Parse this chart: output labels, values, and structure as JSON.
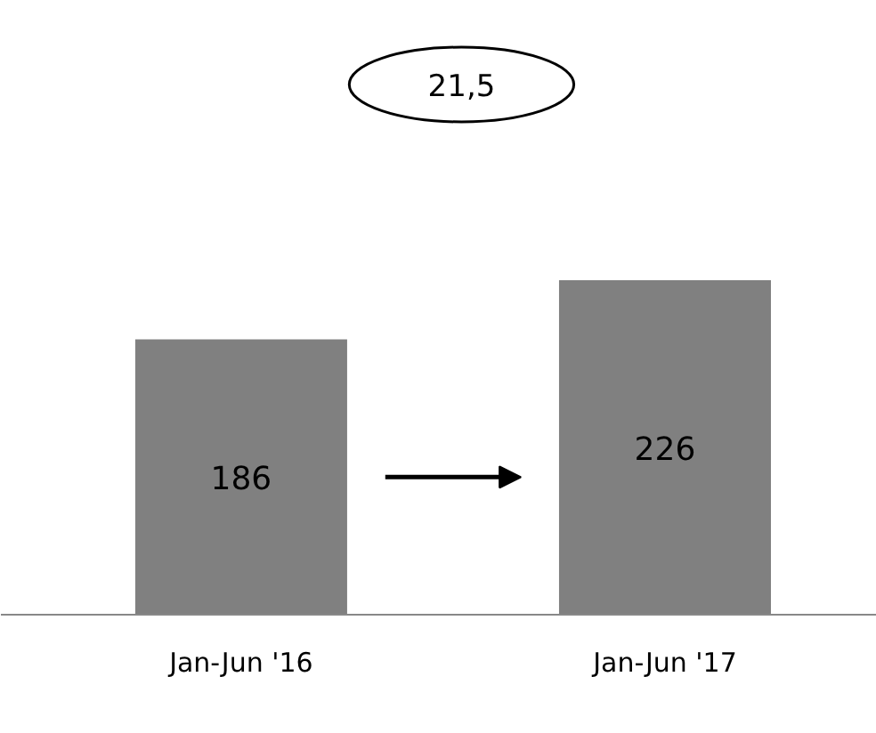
{
  "chart_data": {
    "type": "bar",
    "categories": [
      "Jan-Jun '16",
      "Jan-Jun '17"
    ],
    "values": [
      186,
      226
    ],
    "color": "#808080",
    "data_labels": true,
    "annotations": [
      "21,5"
    ]
  }
}
